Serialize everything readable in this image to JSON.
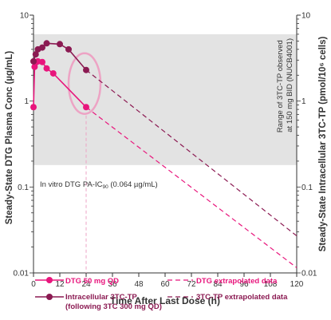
{
  "chart_data": {
    "type": "line",
    "xlabel": "Time After Last Dose (h)",
    "ylabel_left": "Steady-State DTG Plasma Conc (µg/mL)",
    "ylabel_right": "Steady-State Intracellular 3TC-TP (pmol/10⁶ cells)",
    "x_ticks": [
      0,
      12,
      24,
      36,
      48,
      60,
      72,
      84,
      96,
      108,
      120
    ],
    "xlim": [
      0,
      120
    ],
    "ylim": [
      0.01,
      10
    ],
    "y_scale": "log",
    "y_ticks": [
      {
        "value": 10,
        "label": "10"
      },
      {
        "value": 1,
        "label": "1"
      },
      {
        "value": 0.1,
        "label": "0.1"
      },
      {
        "value": 0.01,
        "label": "0.01"
      }
    ],
    "band": {
      "range": [
        0.18,
        6.0
      ],
      "label_line1": "Range of 3TC-TP observed",
      "label_line2": "at 150 mg BID (NUCB4001)"
    },
    "reference": {
      "value": 0.064,
      "label_main": "In vitro DTG PA-IC",
      "label_sub": "90",
      "label_tail": " (0.064 µg/mL)"
    },
    "highlight": {
      "x": 24,
      "y": 1.6,
      "description": "circled 24 h values"
    },
    "colors": {
      "dtg": "#e8157c",
      "tp": "#8b1a52",
      "band": "#e3e3e3",
      "circle": "#eda3c4"
    },
    "series": [
      {
        "name": "DTG 50 mg QD",
        "color": "#e8157c",
        "points": [
          {
            "x": 0,
            "y": 0.85
          },
          {
            "x": 0.5,
            "y": 2.5
          },
          {
            "x": 1,
            "y": 2.8
          },
          {
            "x": 2,
            "y": 2.9
          },
          {
            "x": 4,
            "y": 2.85
          },
          {
            "x": 6,
            "y": 2.4
          },
          {
            "x": 9,
            "y": 2.1
          },
          {
            "x": 24,
            "y": 0.85
          }
        ],
        "extrapolation": {
          "from": {
            "x": 24,
            "y": 0.85
          },
          "to": {
            "x": 120,
            "y": 0.0115
          }
        }
      },
      {
        "name": "Intracellular 3TC-TP",
        "name_line2": "(following 3TC 300 mg QD)",
        "color": "#8b1a52",
        "points": [
          {
            "x": 0,
            "y": 2.9
          },
          {
            "x": 1,
            "y": 3.5
          },
          {
            "x": 2,
            "y": 4.0
          },
          {
            "x": 4,
            "y": 4.2
          },
          {
            "x": 6,
            "y": 4.7
          },
          {
            "x": 12,
            "y": 4.6
          },
          {
            "x": 16,
            "y": 4.0
          },
          {
            "x": 24,
            "y": 2.3
          }
        ],
        "extrapolation": {
          "from": {
            "x": 24,
            "y": 2.3
          },
          "to": {
            "x": 120,
            "y": 0.027
          }
        }
      }
    ],
    "legend": [
      {
        "label": "DTG 50 mg QD",
        "style": "solid-marker",
        "color": "#e8157c"
      },
      {
        "label": "Intracellular 3TC-TP",
        "label_line2": "(following 3TC 300 mg QD)",
        "style": "solid-marker",
        "color": "#8b1a52"
      },
      {
        "label": "DTG extrapolated data",
        "style": "dashed",
        "color": "#e8157c"
      },
      {
        "label": "3TC-TP extrapolated data",
        "style": "dashed",
        "color": "#8b1a52"
      }
    ]
  }
}
